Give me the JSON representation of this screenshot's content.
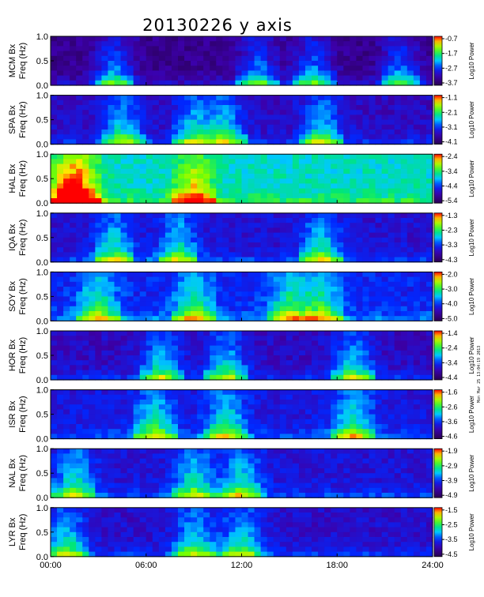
{
  "chart_data": {
    "type": "heatmap",
    "title": "20130226 y axis",
    "xlabel": "",
    "x_ticks": [
      "00:00",
      "06:00",
      "12:00",
      "18:00",
      "24:00"
    ],
    "xlim_hours": [
      0,
      24
    ],
    "ylim_hz": [
      0.0,
      1.0
    ],
    "y_ticks": [
      "0.0",
      "0.5",
      "1.0"
    ],
    "colorbar_label": "Log10 Power",
    "colormap": "rainbow (purple-blue-cyan-green-yellow-red)",
    "side_note": "Mon Mar 25 13:04:19 2013",
    "panels": [
      {
        "station": "MCM",
        "ylabel_top": "MCM Bx",
        "ylabel_bottom": "Freq (Hz)",
        "cbar_ticks": [
          "-0.7",
          "-1.7",
          "-2.7",
          "-3.7"
        ],
        "level": 0.12,
        "hot_hours": [
          4,
          13,
          16.5,
          22
        ]
      },
      {
        "station": "SPA",
        "ylabel_top": "SPA Bx",
        "ylabel_bottom": "Freq (Hz)",
        "cbar_ticks": [
          "-1.1",
          "-2.1",
          "-3.1",
          "-4.1"
        ],
        "level": 0.22,
        "hot_hours": [
          4.5,
          9,
          11,
          17
        ]
      },
      {
        "station": "HAL",
        "ylabel_top": "HAL Bx",
        "ylabel_bottom": "Freq (Hz)",
        "cbar_ticks": [
          "-2.4",
          "-3.4",
          "-4.4",
          "-5.4"
        ],
        "level": 0.55,
        "hot_hours": [
          1,
          2,
          9
        ]
      },
      {
        "station": "IQA",
        "ylabel_top": "IQA Bx",
        "ylabel_bottom": "Freq (Hz)",
        "cbar_ticks": [
          "-1.3",
          "-2.3",
          "-3.3",
          "-4.3"
        ],
        "level": 0.25,
        "hot_hours": [
          4,
          8,
          17
        ]
      },
      {
        "station": "SOY",
        "ylabel_top": "SOY Bx",
        "ylabel_bottom": "Freq (Hz)",
        "cbar_ticks": [
          "-2.0",
          "-3.0",
          "-4.0",
          "-5.0"
        ],
        "level": 0.32,
        "hot_hours": [
          3,
          9,
          15,
          17
        ]
      },
      {
        "station": "HOR",
        "ylabel_top": "HOR Bx",
        "ylabel_bottom": "Freq (Hz)",
        "cbar_ticks": [
          "-1.4",
          "-2.4",
          "-3.4",
          "-4.4"
        ],
        "level": 0.22,
        "hot_hours": [
          7,
          11,
          19
        ]
      },
      {
        "station": "ISR",
        "ylabel_top": "ISR Bx",
        "ylabel_bottom": "Freq (Hz)",
        "cbar_ticks": [
          "-1.6",
          "-2.6",
          "-3.6",
          "-4.6"
        ],
        "level": 0.28,
        "hot_hours": [
          6.5,
          11,
          19
        ]
      },
      {
        "station": "NAL",
        "ylabel_top": "NAL Bx",
        "ylabel_bottom": "Freq (Hz)",
        "cbar_ticks": [
          "-1.9",
          "-2.9",
          "-3.9",
          "-4.9"
        ],
        "level": 0.26,
        "hot_hours": [
          1.5,
          9,
          12
        ]
      },
      {
        "station": "LYR",
        "ylabel_top": "LYR Bx",
        "ylabel_bottom": "Freq (Hz)",
        "cbar_ticks": [
          "-1.5",
          "-2.5",
          "-3.5",
          "-4.5"
        ],
        "level": 0.24,
        "hot_hours": [
          1,
          9,
          12
        ]
      }
    ]
  }
}
